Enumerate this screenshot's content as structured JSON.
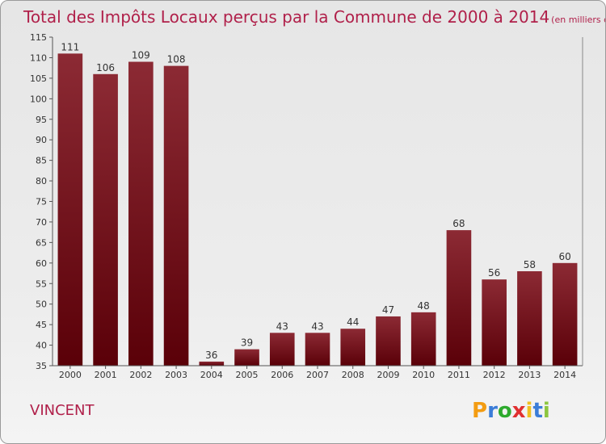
{
  "chart_data": {
    "type": "bar",
    "title": "Total des Impôts Locaux perçus par la Commune de 2000 à 2014",
    "subtitle": "(en milliers d'€)",
    "categories": [
      "2000",
      "2001",
      "2002",
      "2003",
      "2004",
      "2005",
      "2006",
      "2007",
      "2008",
      "2009",
      "2010",
      "2011",
      "2012",
      "2013",
      "2014"
    ],
    "values": [
      111,
      106,
      109,
      108,
      36,
      39,
      43,
      43,
      44,
      47,
      48,
      68,
      56,
      58,
      60
    ],
    "ylim": [
      35,
      115
    ],
    "yticks": [
      35,
      40,
      45,
      50,
      55,
      60,
      65,
      70,
      75,
      80,
      85,
      90,
      95,
      100,
      105,
      110,
      115
    ],
    "xlabel": "",
    "ylabel": "",
    "bar_color": "#7a1a24",
    "grid": false
  },
  "footer": {
    "commune": "VINCENT",
    "logo_letters": [
      "P",
      "r",
      "o",
      "x",
      "i",
      "t",
      "i"
    ],
    "logo_colors": [
      "#f39c12",
      "#3b7dd8",
      "#2eaa2e",
      "#e03030",
      "#f0c020",
      "#3b7dd8",
      "#8cc63f"
    ]
  },
  "colors": {
    "accent": "#b0204a"
  }
}
